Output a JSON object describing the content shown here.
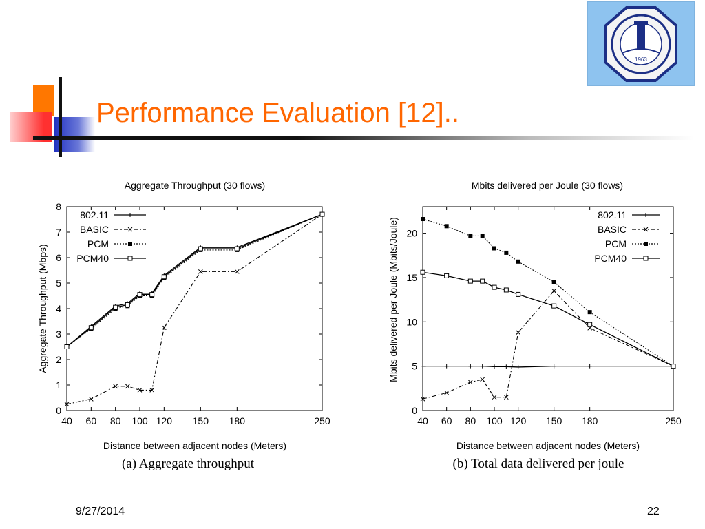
{
  "slide": {
    "title": "Performance Evaluation [12]..",
    "date": "9/27/2014",
    "page_number": "22",
    "accent_color": "#ff6600"
  },
  "logo": {
    "icon": "university-seal-icon",
    "year_text": "1963",
    "alt": "KING FAHD UNIVERSITY OF PETROLEUM & MINERALS"
  },
  "chart_data": [
    {
      "type": "line",
      "title": "Aggregate Throughput (30 flows)",
      "caption": "(a) Aggregate throughput",
      "xlabel": "Distance between adjacent nodes (Meters)",
      "ylabel": "Aggregate Throughput (Mbps)",
      "xlim": [
        40,
        250
      ],
      "ylim": [
        0,
        8
      ],
      "xticks": [
        40,
        60,
        80,
        100,
        120,
        150,
        180,
        250
      ],
      "yticks": [
        0,
        1,
        2,
        3,
        4,
        5,
        6,
        7,
        8
      ],
      "legend_position": "top-left",
      "grid": false,
      "series": [
        {
          "name": "802.11",
          "marker": "plus",
          "dash": "solid",
          "x": [
            40,
            60,
            80,
            90,
            100,
            110,
            120,
            150,
            180,
            250
          ],
          "y": [
            2.5,
            3.3,
            4.1,
            4.2,
            4.6,
            4.6,
            5.3,
            6.4,
            6.4,
            7.7
          ]
        },
        {
          "name": "BASIC",
          "marker": "cross",
          "dash": "dashdot",
          "x": [
            40,
            60,
            80,
            90,
            100,
            110,
            120,
            150,
            180,
            250
          ],
          "y": [
            0.25,
            0.45,
            0.95,
            0.95,
            0.8,
            0.8,
            3.25,
            5.45,
            5.45,
            7.7
          ]
        },
        {
          "name": "PCM",
          "marker": "filled-square",
          "dash": "dotted",
          "x": [
            40,
            60,
            80,
            90,
            100,
            110,
            120,
            150,
            180,
            250
          ],
          "y": [
            2.5,
            3.2,
            4.0,
            4.1,
            4.5,
            4.5,
            5.2,
            6.3,
            6.3,
            7.7
          ]
        },
        {
          "name": "PCM40",
          "marker": "open-square",
          "dash": "solid",
          "x": [
            40,
            60,
            80,
            90,
            100,
            110,
            120,
            150,
            180,
            250
          ],
          "y": [
            2.5,
            3.25,
            4.05,
            4.15,
            4.55,
            4.55,
            5.25,
            6.35,
            6.35,
            7.7
          ]
        }
      ]
    },
    {
      "type": "line",
      "title": "Mbits delivered per Joule (30 flows)",
      "caption": "(b) Total data delivered per joule",
      "xlabel": "Distance between adjacent nodes (Meters)",
      "ylabel": "Mbits delivered per Joule (Mbits/Joule)",
      "xlim": [
        40,
        250
      ],
      "ylim": [
        0,
        23
      ],
      "xticks": [
        40,
        60,
        80,
        100,
        120,
        150,
        180,
        250
      ],
      "yticks": [
        0,
        5,
        10,
        15,
        20
      ],
      "legend_position": "top-right",
      "grid": false,
      "series": [
        {
          "name": "802.11",
          "marker": "plus",
          "dash": "solid",
          "x": [
            40,
            60,
            80,
            90,
            100,
            110,
            120,
            150,
            180,
            250
          ],
          "y": [
            5.0,
            5.0,
            5.0,
            5.0,
            4.95,
            4.95,
            4.9,
            5.0,
            5.0,
            5.0
          ]
        },
        {
          "name": "BASIC",
          "marker": "cross",
          "dash": "dashdot",
          "x": [
            40,
            60,
            80,
            90,
            100,
            110,
            120,
            150,
            180,
            250
          ],
          "y": [
            1.3,
            2.0,
            3.2,
            3.5,
            1.5,
            1.5,
            8.8,
            13.5,
            9.3,
            5.0
          ]
        },
        {
          "name": "PCM",
          "marker": "filled-square",
          "dash": "dotted",
          "x": [
            40,
            60,
            80,
            90,
            100,
            110,
            120,
            150,
            180,
            250
          ],
          "y": [
            21.6,
            20.8,
            19.7,
            19.7,
            18.3,
            17.8,
            16.8,
            14.5,
            11.1,
            5.0
          ]
        },
        {
          "name": "PCM40",
          "marker": "open-square",
          "dash": "solid",
          "x": [
            40,
            60,
            80,
            90,
            100,
            110,
            120,
            150,
            180,
            250
          ],
          "y": [
            15.6,
            15.2,
            14.6,
            14.6,
            13.9,
            13.6,
            13.1,
            11.8,
            9.7,
            5.0
          ]
        }
      ]
    }
  ]
}
